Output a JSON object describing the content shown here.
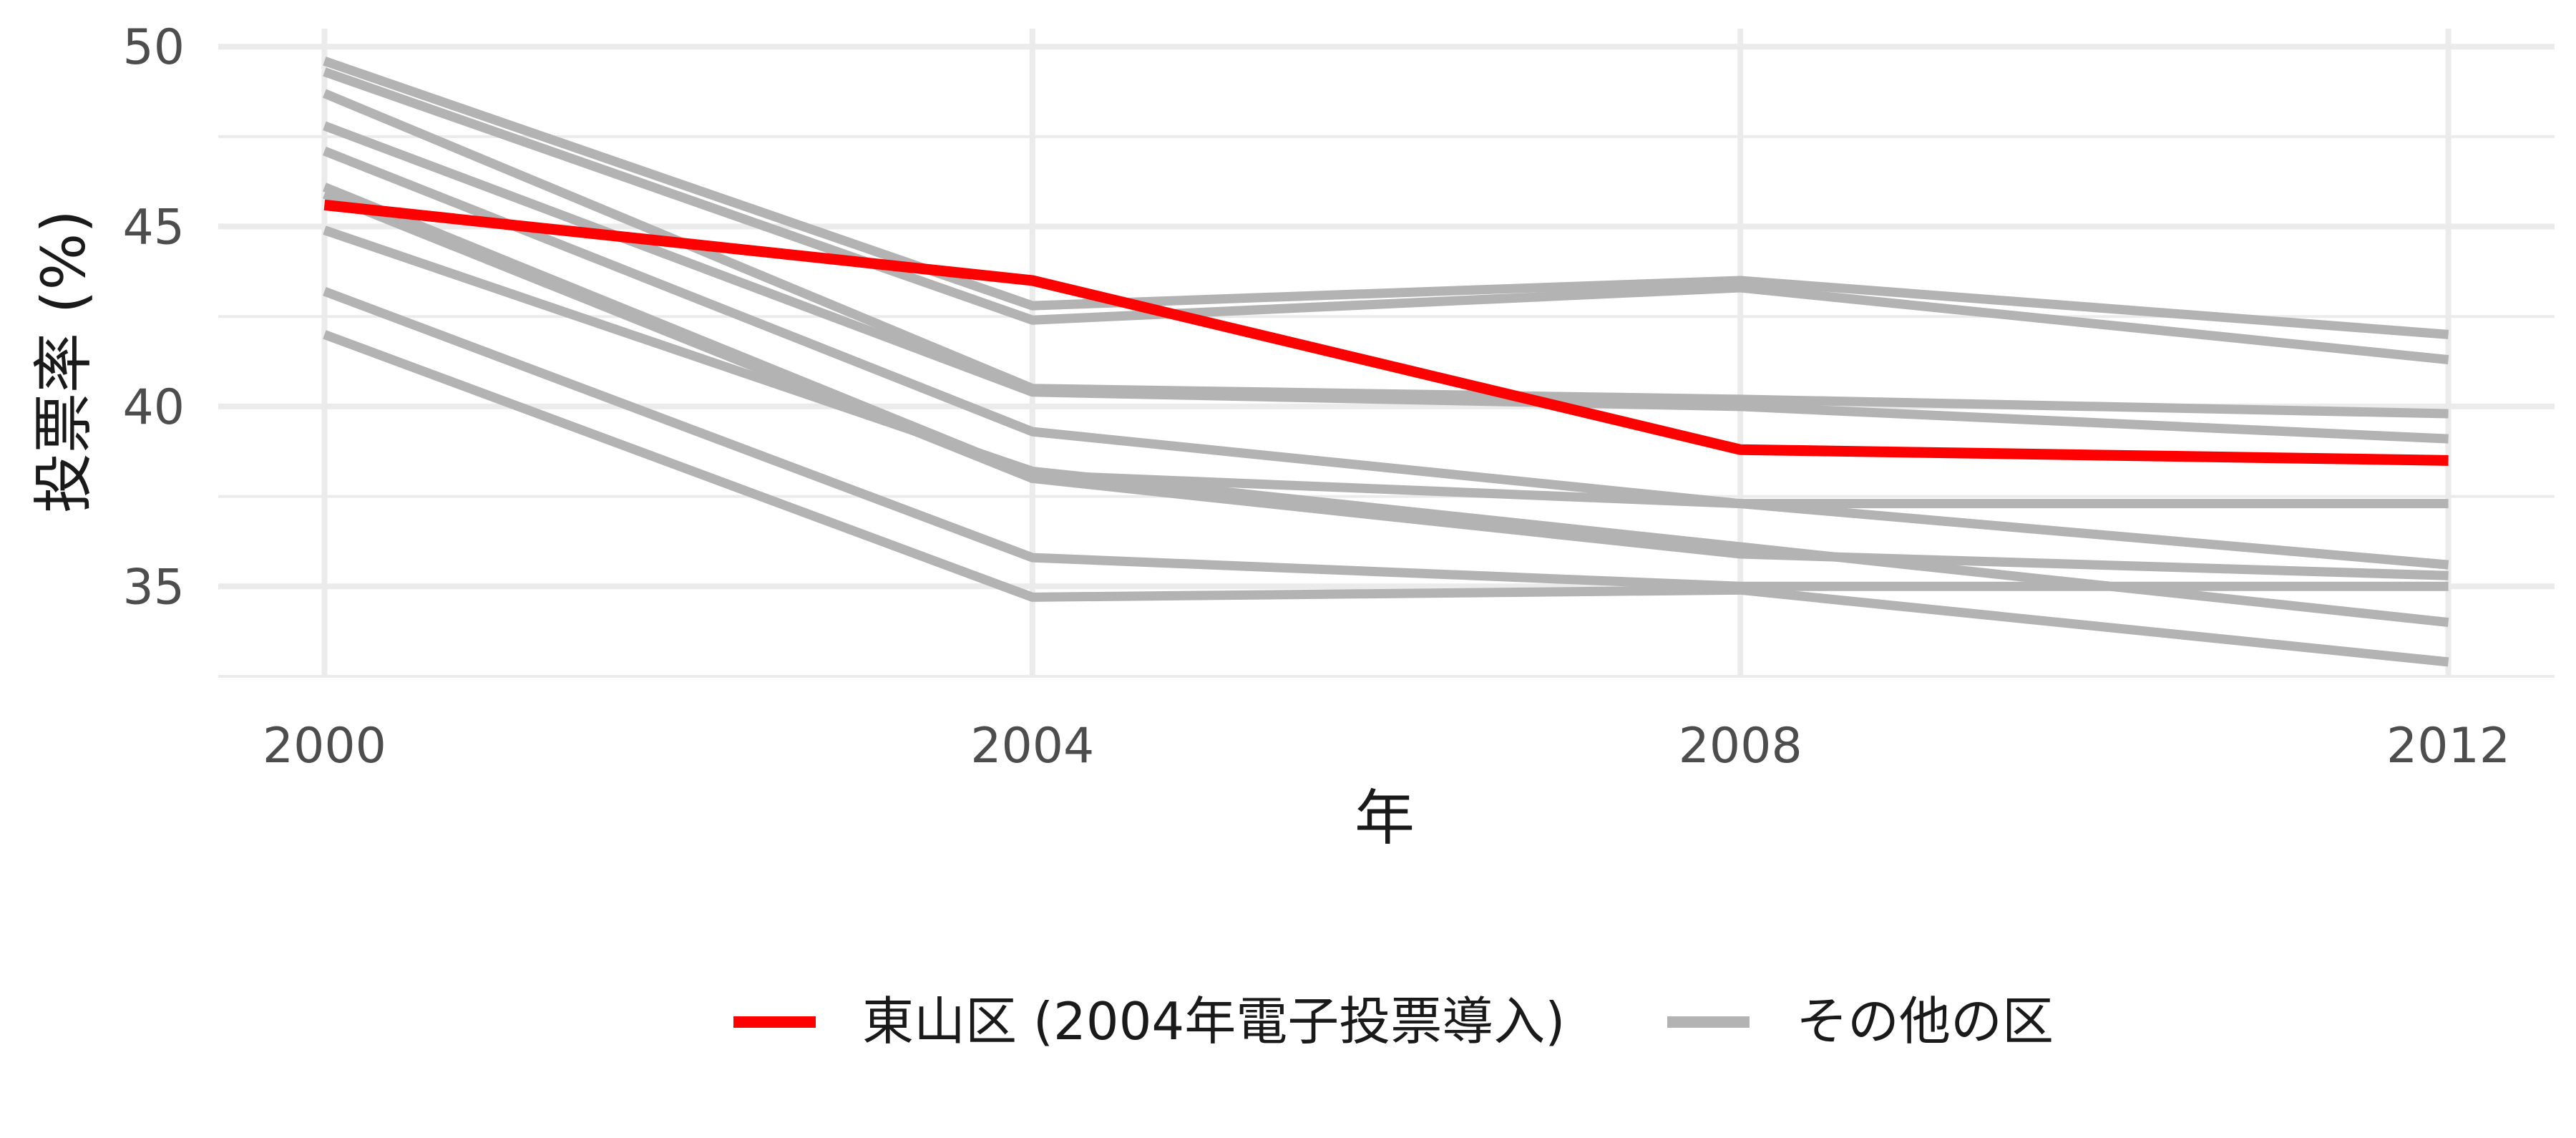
{
  "chart_data": {
    "type": "line",
    "xlabel": "年",
    "ylabel": "投票率 (%)",
    "x": [
      2000,
      2004,
      2008,
      2012
    ],
    "x_ticks": [
      "2000",
      "2004",
      "2008",
      "2012"
    ],
    "y_ticks": [
      "35",
      "40",
      "45",
      "50"
    ],
    "xlim": [
      1999.4,
      2012.6
    ],
    "ylim": [
      32.5,
      50.5
    ],
    "grid": true,
    "legend_position": "bottom",
    "legend": [
      {
        "label": "東山区 (2004年電子投票導入)",
        "color": "#ff0000"
      },
      {
        "label": "その他の区",
        "color": "#b3b3b3"
      }
    ],
    "series": [
      {
        "name": "東山区 (2004年電子投票導入)",
        "color": "#ff0000",
        "values": [
          45.6,
          43.5,
          38.8,
          38.5
        ]
      },
      {
        "color": "#b3b3b3",
        "values": [
          49.6,
          42.8,
          43.5,
          42.0
        ]
      },
      {
        "color": "#b3b3b3",
        "values": [
          49.3,
          42.4,
          43.3,
          41.3
        ]
      },
      {
        "color": "#b3b3b3",
        "values": [
          48.7,
          40.5,
          40.2,
          39.8
        ]
      },
      {
        "color": "#b3b3b3",
        "values": [
          47.8,
          40.4,
          40.0,
          39.1
        ]
      },
      {
        "color": "#b3b3b3",
        "values": [
          47.1,
          39.3,
          37.3,
          37.3
        ]
      },
      {
        "color": "#b3b3b3",
        "values": [
          46.1,
          38.1,
          37.3,
          35.6
        ]
      },
      {
        "color": "#b3b3b3",
        "values": [
          45.9,
          38.0,
          35.9,
          35.3
        ]
      },
      {
        "color": "#b3b3b3",
        "values": [
          44.9,
          38.2,
          36.1,
          34.0
        ]
      },
      {
        "color": "#b3b3b3",
        "values": [
          43.2,
          35.8,
          35.0,
          35.0
        ]
      },
      {
        "color": "#b3b3b3",
        "values": [
          42.0,
          34.7,
          34.9,
          32.9
        ]
      }
    ]
  }
}
